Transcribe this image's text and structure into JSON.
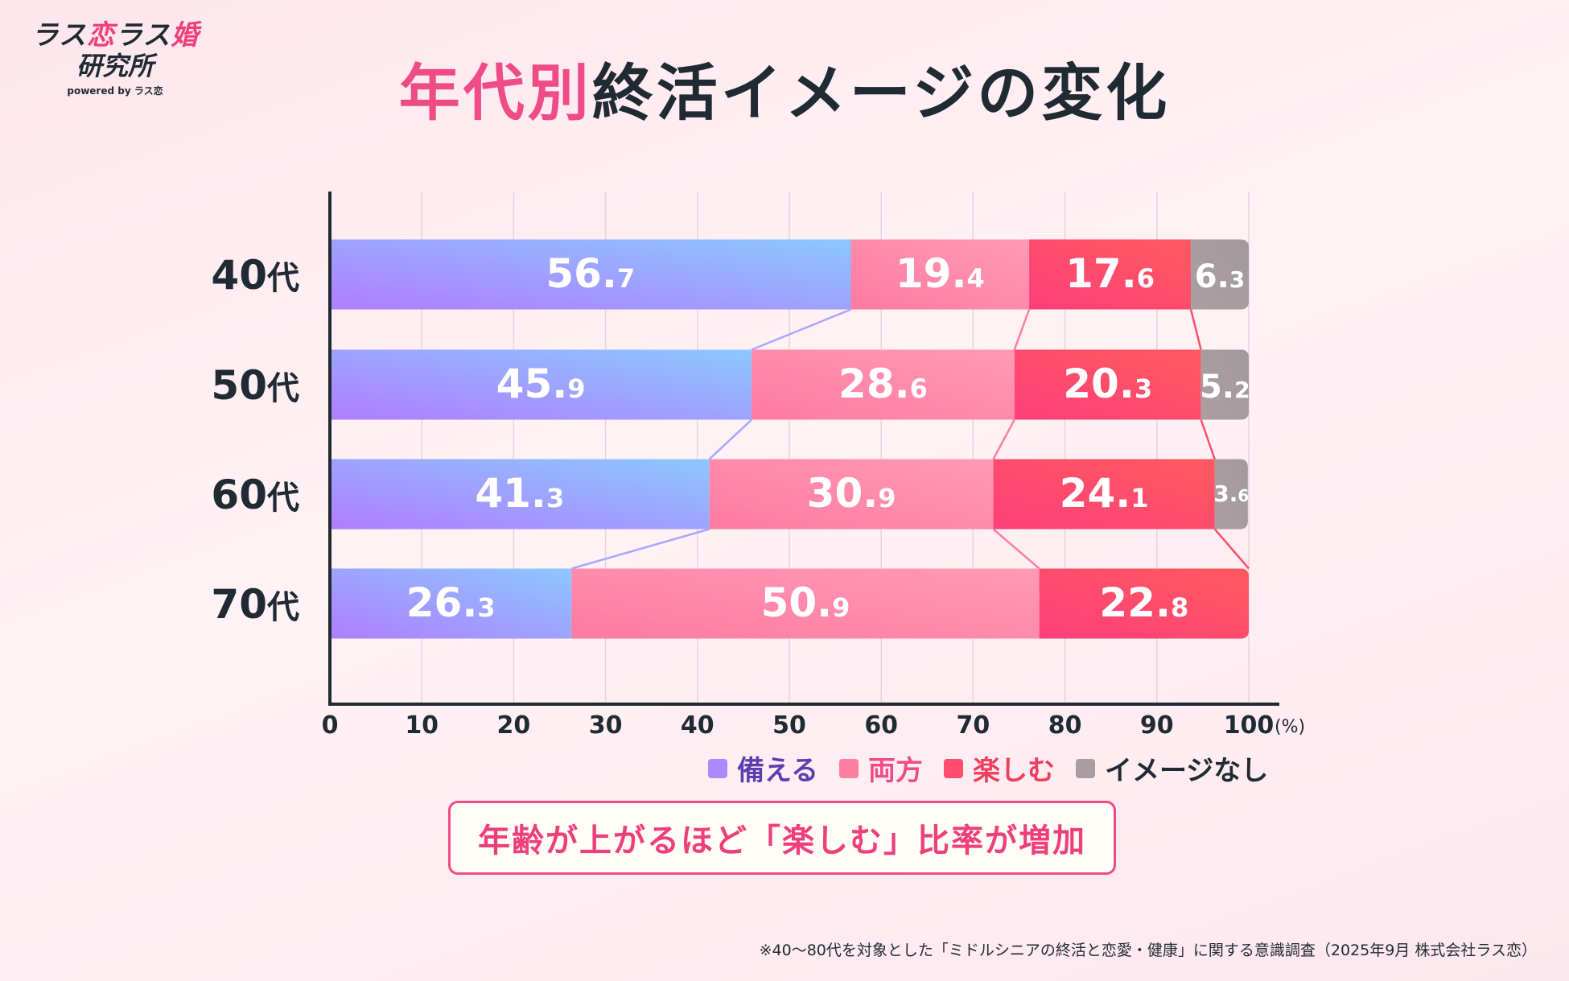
{
  "logo": {
    "line1_a": "ラス",
    "line1_b": "恋",
    "line1_c": "ラス",
    "line1_d": "婚",
    "line2": "研究所",
    "sub": "powered by ラス恋"
  },
  "title": {
    "accent": "年代別",
    "rest": "終活イメージの変化"
  },
  "chart_data": {
    "type": "bar",
    "orientation": "horizontal",
    "stacked": true,
    "categories": [
      "40代",
      "50代",
      "60代",
      "70代"
    ],
    "series": [
      {
        "name": "備える",
        "values": [
          56.7,
          45.9,
          41.3,
          26.3
        ]
      },
      {
        "name": "両方",
        "values": [
          19.4,
          28.6,
          30.9,
          50.9
        ]
      },
      {
        "name": "楽しむ",
        "values": [
          17.6,
          20.3,
          24.1,
          22.8
        ]
      },
      {
        "name": "イメージなし",
        "values": [
          6.3,
          5.2,
          3.6,
          null
        ]
      }
    ],
    "xlim": [
      0,
      100
    ],
    "xticks": [
      0,
      10,
      20,
      30,
      40,
      50,
      60,
      70,
      80,
      90,
      100
    ],
    "unit": "(%)",
    "grid": true,
    "legend": "bottom-right",
    "series_colors": [
      "#a98bff",
      "#ff7fa3",
      "#ff4d6d",
      "#a89ea2"
    ],
    "legend_text_colors": [
      "#5a3fb0",
      "#ef4b86",
      "#ef3f5f",
      "#1f2a33"
    ]
  },
  "callout": "年齢が上がるほど「楽しむ」比率が増加",
  "footnote": "※40〜80代を対象とした「ミドルシニアの終活と恋愛・健康」に関する意識調査（2025年9月 株式会社ラス恋）"
}
